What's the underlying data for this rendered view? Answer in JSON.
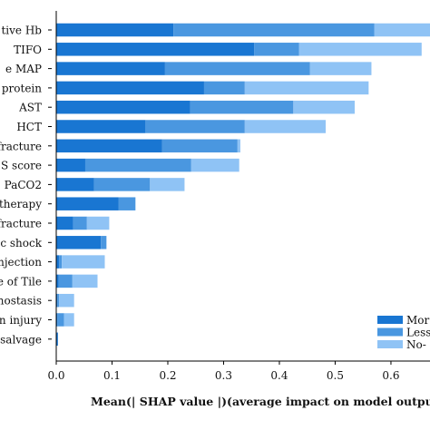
{
  "chart_data": {
    "type": "bar",
    "orientation": "horizontal",
    "stacked": true,
    "categories": [
      "tive Hb",
      "TIFO",
      "e  MAP",
      "protein",
      "AST",
      "HCT",
      "fracture",
      "S score",
      "PaCO2",
      "therapy",
      "fracture",
      "c shock",
      "njection",
      "e of Tile",
      "nostasis",
      "an injury",
      "salvage"
    ],
    "series": [
      {
        "name": "Mor",
        "color": "#1976d2",
        "values": [
          0.21,
          0.355,
          0.195,
          0.265,
          0.24,
          0.16,
          0.19,
          0.052,
          0.068,
          0.112,
          0.03,
          0.08,
          0.005,
          0.004,
          0.002,
          0.002,
          0.003
        ]
      },
      {
        "name": "Less",
        "color": "#4a97e0",
        "values": [
          0.36,
          0.08,
          0.26,
          0.073,
          0.185,
          0.178,
          0.135,
          0.19,
          0.1,
          0.03,
          0.025,
          0.01,
          0.005,
          0.025,
          0.003,
          0.012,
          0.0
        ]
      },
      {
        "name": "No-",
        "color": "#8fc3f5",
        "values": [
          0.12,
          0.22,
          0.11,
          0.222,
          0.11,
          0.145,
          0.005,
          0.086,
          0.062,
          0.0,
          0.04,
          0.0,
          0.077,
          0.045,
          0.027,
          0.018,
          0.0
        ]
      }
    ],
    "xticks": [
      0.0,
      0.1,
      0.2,
      0.3,
      0.4,
      0.5,
      0.6
    ],
    "xlim": [
      0,
      0.67
    ],
    "xlabel": "Mean(| SHAP value |)(average impact on model output magnitu",
    "legend_position": "bottom-right",
    "grid": false
  }
}
